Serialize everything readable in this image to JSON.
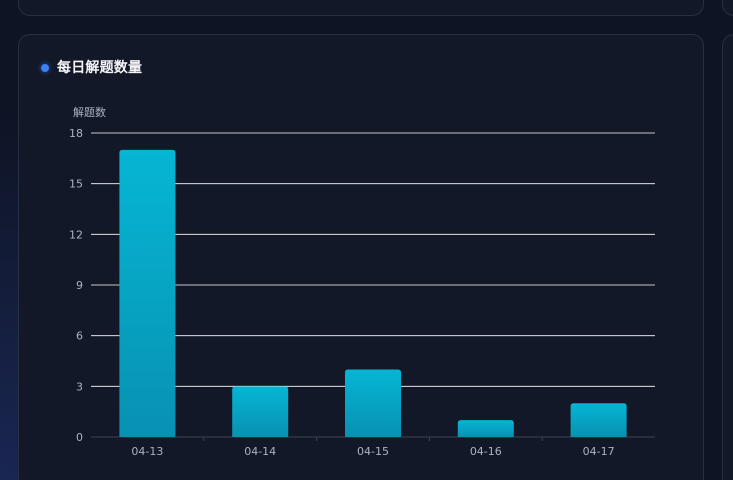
{
  "panel": {
    "title": "每日解题数量"
  },
  "colors": {
    "accent_dot": "#3b82f6",
    "bar_top": "#06b6d4",
    "bar_bottom": "#0891b2",
    "grid": "#ffffff",
    "axis_text": "#a9b3c4"
  },
  "chart_data": {
    "type": "bar",
    "title": "每日解题数量",
    "xlabel": "",
    "ylabel": "解题数",
    "categories": [
      "04-13",
      "04-14",
      "04-15",
      "04-16",
      "04-17"
    ],
    "values": [
      17,
      3,
      4,
      1,
      2
    ],
    "ylim": [
      0,
      18
    ],
    "yticks": [
      0,
      3,
      6,
      9,
      12,
      15,
      18
    ],
    "grid": true,
    "legend": "none"
  }
}
